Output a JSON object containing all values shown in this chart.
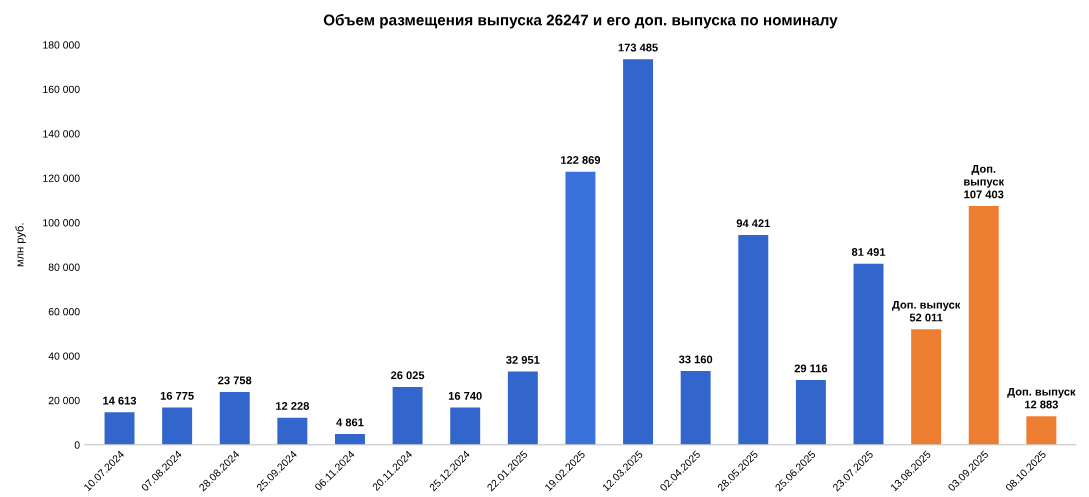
{
  "chart_data": {
    "type": "bar",
    "title": "Объем размещения выпуска 26247 и его доп. выпуска по номиналу",
    "ylabel": "млн руб.",
    "categories": [
      "10.07.2024",
      "07.08.2024",
      "28.08.2024",
      "25.09.2024",
      "06.11.2024",
      "20.11.2024",
      "25.12.2024",
      "22.01.2025",
      "19.02.2025",
      "12.03.2025",
      "02.04.2025",
      "28.05.2025",
      "25.06.2025",
      "23.07.2025",
      "13.08.2025",
      "03.09.2025",
      "08.10.2025"
    ],
    "values": [
      14613,
      16775,
      23758,
      12228,
      4861,
      26025,
      16740,
      32951,
      122869,
      173485,
      33160,
      94421,
      29116,
      81491,
      52011,
      107403,
      12883
    ],
    "colors": [
      "#3366cc",
      "#3366cc",
      "#3366cc",
      "#3366cc",
      "#3366cc",
      "#3366cc",
      "#3366cc",
      "#3366cc",
      "#3a72dc",
      "#3366cc",
      "#3366cc",
      "#3366cc",
      "#3366cc",
      "#3366cc",
      "#ed7d31",
      "#ed7d31",
      "#ed7d31"
    ],
    "value_labels": [
      "14 613",
      "16 775",
      "23 758",
      "12 228",
      "4 861",
      "26 025",
      "16 740",
      "32 951",
      "122 869",
      "173 485",
      "33 160",
      "94 421",
      "29 116",
      "81 491",
      "Доп. выпуск\n52 011",
      "Доп.\nвыпуск\n107 403",
      "Доп. выпуск\n12 883"
    ],
    "ylim": [
      0,
      180000
    ],
    "yticks": [
      {
        "value": 0,
        "label": "0"
      },
      {
        "value": 20000,
        "label": "20 000"
      },
      {
        "value": 40000,
        "label": "40 000"
      },
      {
        "value": 60000,
        "label": "60 000"
      },
      {
        "value": 80000,
        "label": "80 000"
      },
      {
        "value": 100000,
        "label": "100 000"
      },
      {
        "value": 120000,
        "label": "120 000"
      },
      {
        "value": 140000,
        "label": "140 000"
      },
      {
        "value": 160000,
        "label": "160 000"
      },
      {
        "value": 180000,
        "label": "180 000"
      }
    ],
    "grid": false,
    "legend": false
  }
}
